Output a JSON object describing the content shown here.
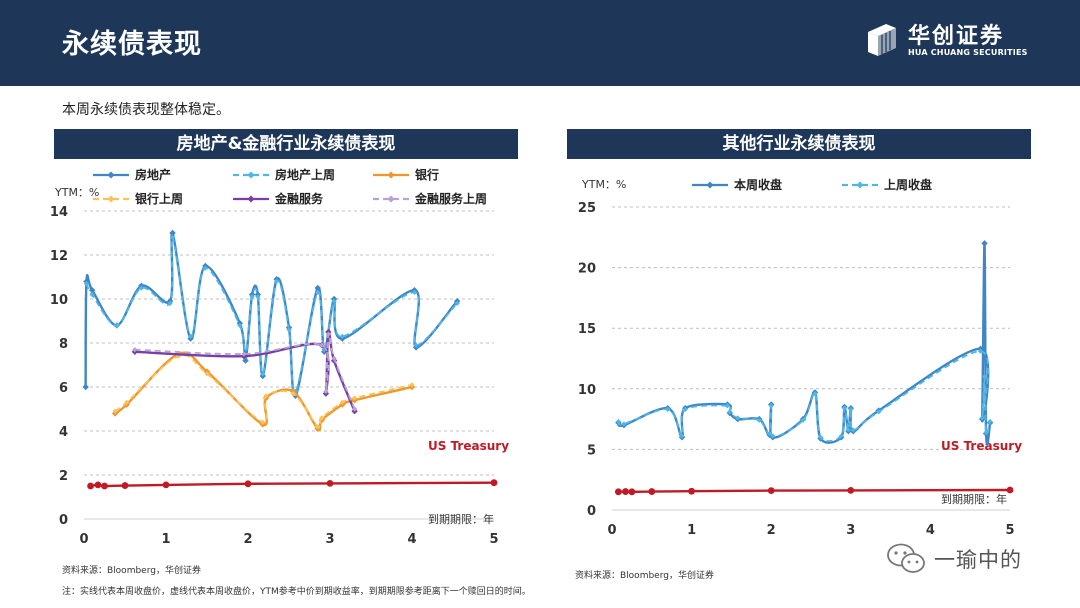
{
  "header": {
    "title": "永续债表现"
  },
  "logo": {
    "name_cn": "华创证券",
    "name_en": "HUA CHUANG SECURITIES"
  },
  "intro": "本周永续债表现整体稳定。",
  "footer": {
    "source_left": "资料来源：Bloomberg，华创证券",
    "source_right": "资料来源：Bloomberg，华创证券",
    "note": "注：实线代表本周收盘价，虚线代表本周收盘价，YTM参考中价到期收益率，到期期限参考距离下一个赎回日的时间。"
  },
  "watermark": {
    "text": "一瑜中的"
  },
  "colors": {
    "navy": "#1e3658",
    "blue": "#3f86c6",
    "light_blue": "#4fb7e8",
    "orange": "#f0962c",
    "light_orange": "#f8c35a",
    "purple": "#7a3fa4",
    "light_purple": "#b4a4d4",
    "red": "#c01b25"
  },
  "chart_data": [
    {
      "type": "line",
      "title": "房地产&金融行业永续债表现",
      "ylabel": "YTM：%",
      "xlabel": "到期期限：年",
      "xlim": [
        0,
        5
      ],
      "ylim": [
        0,
        14
      ],
      "x_ticks": [
        0,
        1,
        2,
        3,
        4,
        5
      ],
      "y_ticks": [
        0,
        2,
        4,
        6,
        8,
        10,
        12,
        14
      ],
      "grid": true,
      "legend_position": "top",
      "annotations": [
        {
          "text": "US Treasury",
          "color": "#c01b25"
        }
      ],
      "series": [
        {
          "name": "房地产",
          "style": "solid",
          "color": "#3f86c6",
          "points": [
            [
              0.02,
              6.0
            ],
            [
              0.03,
              10.8
            ],
            [
              0.1,
              10.4
            ],
            [
              0.4,
              8.8
            ],
            [
              0.7,
              10.6
            ],
            [
              1.05,
              9.9
            ],
            [
              1.08,
              13.0
            ],
            [
              1.3,
              8.2
            ],
            [
              1.48,
              11.5
            ],
            [
              1.9,
              8.9
            ],
            [
              1.97,
              7.2
            ],
            [
              2.05,
              10.2
            ],
            [
              2.12,
              10.2
            ],
            [
              2.18,
              6.5
            ],
            [
              2.35,
              10.9
            ],
            [
              2.5,
              8.7
            ],
            [
              2.58,
              5.6
            ],
            [
              2.85,
              10.5
            ],
            [
              2.93,
              7.6
            ],
            [
              3.05,
              10.0
            ],
            [
              3.15,
              8.2
            ],
            [
              4.03,
              10.4
            ],
            [
              4.05,
              7.8
            ],
            [
              4.55,
              9.9
            ]
          ]
        },
        {
          "name": "房地产上周",
          "style": "dashed",
          "color": "#4fb7e8",
          "points": [
            [
              0.03,
              10.7
            ],
            [
              0.1,
              10.2
            ],
            [
              0.4,
              8.8
            ],
            [
              0.7,
              10.5
            ],
            [
              1.05,
              9.8
            ],
            [
              1.08,
              12.8
            ],
            [
              1.3,
              8.3
            ],
            [
              1.48,
              11.4
            ],
            [
              1.9,
              8.8
            ],
            [
              1.97,
              7.4
            ],
            [
              2.05,
              10.1
            ],
            [
              2.12,
              10.1
            ],
            [
              2.18,
              6.6
            ],
            [
              2.35,
              10.8
            ],
            [
              2.5,
              8.6
            ],
            [
              2.58,
              5.8
            ],
            [
              2.85,
              10.3
            ],
            [
              2.93,
              7.7
            ],
            [
              3.05,
              9.9
            ],
            [
              3.15,
              8.3
            ],
            [
              4.03,
              10.3
            ],
            [
              4.05,
              7.9
            ],
            [
              4.55,
              9.8
            ]
          ]
        },
        {
          "name": "银行",
          "style": "solid",
          "color": "#f0962c",
          "points": [
            [
              0.38,
              4.8
            ],
            [
              0.52,
              5.2
            ],
            [
              1.15,
              7.5
            ],
            [
              1.5,
              6.7
            ],
            [
              2.18,
              4.3
            ],
            [
              2.22,
              5.5
            ],
            [
              2.55,
              5.8
            ],
            [
              2.85,
              4.1
            ],
            [
              2.9,
              4.5
            ],
            [
              3.15,
              5.2
            ],
            [
              3.3,
              5.4
            ],
            [
              4.0,
              6.0
            ]
          ]
        },
        {
          "name": "银行上周",
          "style": "dashed",
          "color": "#f8c35a",
          "points": [
            [
              0.38,
              4.9
            ],
            [
              0.52,
              5.3
            ],
            [
              1.15,
              7.4
            ],
            [
              1.5,
              6.6
            ],
            [
              2.18,
              4.4
            ],
            [
              2.22,
              5.6
            ],
            [
              2.55,
              5.7
            ],
            [
              2.85,
              4.2
            ],
            [
              2.9,
              4.6
            ],
            [
              3.15,
              5.3
            ],
            [
              3.3,
              5.5
            ],
            [
              4.0,
              6.1
            ]
          ]
        },
        {
          "name": "金融服务",
          "style": "solid",
          "color": "#7a3fa4",
          "points": [
            [
              0.62,
              7.6
            ],
            [
              1.95,
              7.4
            ],
            [
              2.9,
              7.9
            ],
            [
              2.95,
              5.7
            ],
            [
              2.98,
              8.5
            ],
            [
              3.05,
              7.2
            ],
            [
              3.3,
              4.9
            ]
          ]
        },
        {
          "name": "金融服务上周",
          "style": "dashed",
          "color": "#b4a4d4",
          "points": [
            [
              0.62,
              7.7
            ],
            [
              1.95,
              7.5
            ],
            [
              2.9,
              7.9
            ],
            [
              2.95,
              5.8
            ],
            [
              2.98,
              8.4
            ],
            [
              3.05,
              7.3
            ],
            [
              3.3,
              5.0
            ]
          ]
        },
        {
          "name": "US Treasury",
          "style": "solid",
          "color": "#c01b25",
          "legend": false,
          "points": [
            [
              0.08,
              1.5
            ],
            [
              0.17,
              1.55
            ],
            [
              0.25,
              1.5
            ],
            [
              0.5,
              1.52
            ],
            [
              1.0,
              1.55
            ],
            [
              2.0,
              1.6
            ],
            [
              3.0,
              1.62
            ],
            [
              5.0,
              1.65
            ]
          ]
        }
      ]
    },
    {
      "type": "line",
      "title": "其他行业永续债表现",
      "ylabel": "YTM：%",
      "xlabel": "到期期限：年",
      "xlim": [
        0,
        5
      ],
      "ylim": [
        0,
        25
      ],
      "x_ticks": [
        0,
        1,
        2,
        3,
        4,
        5
      ],
      "y_ticks": [
        0,
        5,
        10,
        15,
        20,
        25
      ],
      "grid": true,
      "legend_position": "top",
      "annotations": [
        {
          "text": "US Treasury",
          "color": "#c01b25"
        }
      ],
      "series": [
        {
          "name": "本周收盘",
          "style": "solid",
          "color": "#3f86c6",
          "points": [
            [
              0.08,
              7.2
            ],
            [
              0.15,
              7.0
            ],
            [
              0.7,
              8.4
            ],
            [
              0.88,
              6.0
            ],
            [
              0.92,
              8.4
            ],
            [
              1.45,
              8.7
            ],
            [
              1.48,
              8.0
            ],
            [
              1.58,
              7.5
            ],
            [
              1.85,
              7.5
            ],
            [
              1.98,
              6.2
            ],
            [
              2.0,
              8.7
            ],
            [
              2.02,
              6.0
            ],
            [
              2.4,
              7.5
            ],
            [
              2.55,
              9.7
            ],
            [
              2.62,
              5.9
            ],
            [
              2.88,
              6.0
            ],
            [
              2.92,
              8.5
            ],
            [
              2.97,
              6.5
            ],
            [
              3.0,
              8.4
            ],
            [
              3.03,
              6.5
            ],
            [
              3.35,
              8.2
            ],
            [
              4.63,
              13.3
            ],
            [
              4.65,
              7.5
            ],
            [
              4.68,
              22.0
            ],
            [
              4.7,
              6.3
            ],
            [
              4.75,
              7.2
            ]
          ]
        },
        {
          "name": "上周收盘",
          "style": "dashed",
          "color": "#4fb7e8",
          "points": [
            [
              0.08,
              7.3
            ],
            [
              0.15,
              7.1
            ],
            [
              0.7,
              8.3
            ],
            [
              0.88,
              6.1
            ],
            [
              0.92,
              8.3
            ],
            [
              1.45,
              8.6
            ],
            [
              1.48,
              8.1
            ],
            [
              1.58,
              7.6
            ],
            [
              1.85,
              7.4
            ],
            [
              1.98,
              6.3
            ],
            [
              2.0,
              8.6
            ],
            [
              2.02,
              6.1
            ],
            [
              2.4,
              7.4
            ],
            [
              2.55,
              9.6
            ],
            [
              2.62,
              6.0
            ],
            [
              2.88,
              6.1
            ],
            [
              2.92,
              8.4
            ],
            [
              2.97,
              6.6
            ],
            [
              3.0,
              8.3
            ],
            [
              3.03,
              6.6
            ],
            [
              3.35,
              8.1
            ],
            [
              4.63,
              13.1
            ],
            [
              4.65,
              7.6
            ],
            [
              4.68,
              11.0
            ],
            [
              4.7,
              6.4
            ],
            [
              4.75,
              7.3
            ]
          ]
        },
        {
          "name": "US Treasury",
          "style": "solid",
          "color": "#c01b25",
          "legend": false,
          "points": [
            [
              0.08,
              1.5
            ],
            [
              0.17,
              1.52
            ],
            [
              0.25,
              1.5
            ],
            [
              0.5,
              1.52
            ],
            [
              1.0,
              1.55
            ],
            [
              2.0,
              1.6
            ],
            [
              3.0,
              1.62
            ],
            [
              5.0,
              1.65
            ]
          ]
        }
      ]
    }
  ]
}
